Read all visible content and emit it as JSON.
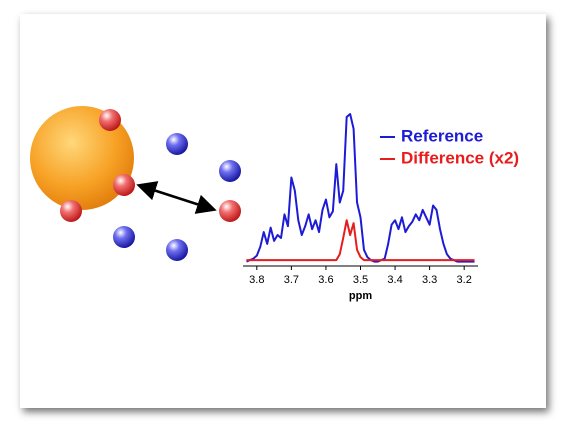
{
  "chart_data": {
    "type": "line",
    "x": [
      3.83,
      3.82,
      3.81,
      3.8,
      3.79,
      3.78,
      3.77,
      3.76,
      3.75,
      3.74,
      3.73,
      3.72,
      3.71,
      3.7,
      3.69,
      3.68,
      3.67,
      3.66,
      3.65,
      3.64,
      3.63,
      3.62,
      3.61,
      3.6,
      3.59,
      3.58,
      3.57,
      3.56,
      3.55,
      3.54,
      3.53,
      3.52,
      3.51,
      3.5,
      3.49,
      3.48,
      3.47,
      3.46,
      3.45,
      3.44,
      3.43,
      3.42,
      3.41,
      3.4,
      3.39,
      3.38,
      3.37,
      3.36,
      3.35,
      3.34,
      3.33,
      3.32,
      3.31,
      3.3,
      3.29,
      3.28,
      3.27,
      3.26,
      3.25,
      3.24,
      3.23,
      3.22,
      3.21,
      3.2,
      3.19,
      3.18,
      3.17
    ],
    "series": [
      {
        "name": "Reference",
        "color": "#1c1cd6",
        "values": [
          0,
          1,
          2,
          4,
          10,
          20,
          12,
          23,
          14,
          18,
          16,
          32,
          24,
          57,
          48,
          28,
          18,
          24,
          32,
          22,
          28,
          20,
          35,
          42,
          30,
          34,
          66,
          40,
          48,
          98,
          100,
          90,
          40,
          30,
          8,
          3,
          1,
          0,
          0,
          1,
          2,
          12,
          25,
          28,
          22,
          30,
          20,
          24,
          27,
          32,
          28,
          35,
          30,
          25,
          38,
          35,
          22,
          12,
          5,
          2,
          1,
          0,
          0,
          0,
          0,
          0,
          0
        ]
      },
      {
        "name": "Difference (x2)",
        "color": "#e81c1c",
        "values": [
          1,
          1,
          1,
          1,
          1,
          1,
          1,
          1,
          1,
          1,
          1,
          1,
          1,
          1,
          1,
          1,
          1,
          1,
          1,
          1,
          1,
          1,
          1,
          1,
          1,
          1,
          1,
          5,
          16,
          28,
          18,
          26,
          8,
          3,
          1,
          1,
          1,
          1,
          1,
          1,
          1,
          1,
          1,
          1,
          1,
          1,
          1,
          1,
          1,
          1,
          1,
          1,
          1,
          1,
          1,
          1,
          1,
          1,
          1,
          1,
          1,
          1,
          1,
          1,
          1,
          1,
          1
        ]
      }
    ],
    "xlabel": "ppm",
    "xlim": [
      3.84,
      3.16
    ],
    "xticks": [
      3.8,
      3.7,
      3.6,
      3.5,
      3.4,
      3.3,
      3.2
    ],
    "ylim": [
      -3,
      100
    ]
  }
}
